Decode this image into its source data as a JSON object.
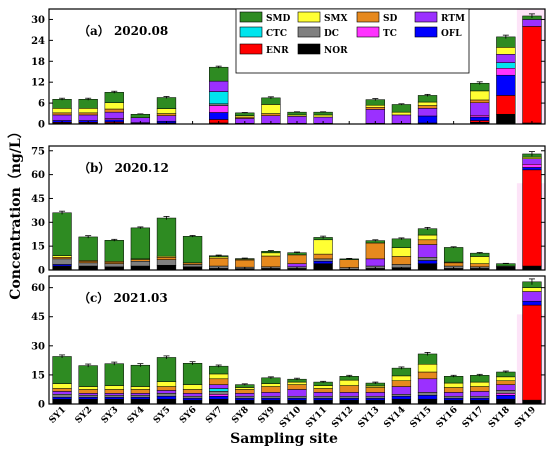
{
  "chart_data": {
    "type": "bar",
    "stacked": true,
    "ylabel": "Concentration（ng/L）",
    "xlabel": "Sampling site",
    "categories": [
      "SY1",
      "SY2",
      "SY3",
      "SY4",
      "SY5",
      "SY6",
      "SY7",
      "SY8",
      "SY9",
      "SY10",
      "SY11",
      "SY12",
      "SY13",
      "SY14",
      "SY15",
      "SY16",
      "SY17",
      "SY18",
      "SY19"
    ],
    "legend": {
      "placement": "top-right of panel (a)",
      "entries": [
        {
          "name": "SMD",
          "color": "#2e8b22"
        },
        {
          "name": "SMX",
          "color": "#ffff33"
        },
        {
          "name": "SD",
          "color": "#e6891e"
        },
        {
          "name": "RTM",
          "color": "#9b30ff"
        },
        {
          "name": "CTC",
          "color": "#00e5ee"
        },
        {
          "name": "DC",
          "color": "#808080"
        },
        {
          "name": "TC",
          "color": "#ff33ff"
        },
        {
          "name": "OFL",
          "color": "#0000ff"
        },
        {
          "name": "ENR",
          "color": "#ff0000"
        },
        {
          "name": "NOR",
          "color": "#000000"
        }
      ]
    },
    "stack_order": [
      "NOR",
      "ENR",
      "OFL",
      "TC",
      "DC",
      "CTC",
      "RTM",
      "SD",
      "SMX",
      "SMD"
    ],
    "panels": [
      {
        "label": "（a）  2020.08",
        "ylim": [
          0,
          33
        ],
        "yticks": [
          0,
          6,
          12,
          18,
          24,
          30
        ],
        "totals": [
          7.1,
          7.1,
          9.1,
          2.8,
          7.6,
          0,
          16.3,
          3.2,
          7.5,
          3.4,
          3.4,
          0,
          7.0,
          5.6,
          8.2,
          0,
          11.7,
          25.0,
          31.0
        ],
        "errors": [
          0.3,
          0.3,
          0.3,
          0.1,
          0.3,
          0,
          0.3,
          0.1,
          0.3,
          0.1,
          0.1,
          0,
          0.3,
          0.2,
          0.3,
          0,
          0.4,
          0.5,
          0.6
        ],
        "stacks": [
          {
            "NOR": 0.3,
            "ENR": 0.2,
            "OFL": 0.5,
            "RTM": 1.6,
            "SD": 0.6,
            "SMX": 1.3,
            "SMD": 2.6
          },
          {
            "NOR": 0.3,
            "ENR": 0.2,
            "OFL": 0.5,
            "RTM": 1.6,
            "SD": 0.6,
            "SMX": 1.3,
            "SMD": 2.6
          },
          {
            "NOR": 0.3,
            "ENR": 0.3,
            "OFL": 0.6,
            "TC": 0.4,
            "RTM": 1.8,
            "SD": 0.9,
            "SMX": 1.8,
            "SMD": 3.0
          },
          {
            "NOR": 0.2,
            "OFL": 0.2,
            "RTM": 1.4,
            "SMD": 1.0
          },
          {
            "NOR": 0.3,
            "OFL": 0.5,
            "RTM": 1.6,
            "SD": 0.6,
            "SMX": 1.4,
            "SMD": 3.2
          },
          {},
          {
            "NOR": 0.3,
            "ENR": 1.0,
            "OFL": 2.0,
            "TC": 2.0,
            "DC": 0.5,
            "CTC": 3.5,
            "RTM": 3.0,
            "SMD": 4.0
          },
          {
            "NOR": 0.2,
            "RTM": 1.4,
            "SD": 0.4,
            "SMX": 0.4,
            "SMD": 0.8
          },
          {
            "NOR": 0.2,
            "RTM": 2.2,
            "SD": 0.6,
            "SMX": 2.6,
            "SMD": 1.9
          },
          {
            "NOR": 0.2,
            "RTM": 2.0,
            "SMX": 0.4,
            "SMD": 0.8
          },
          {
            "NOR": 0.2,
            "RTM": 1.8,
            "SMX": 0.6,
            "SMD": 0.8
          },
          {},
          {
            "NOR": 0.2,
            "RTM": 4.0,
            "SD": 0.6,
            "SMX": 0.6,
            "SMD": 1.6
          },
          {
            "NOR": 0.2,
            "RTM": 2.4,
            "SMX": 0.8,
            "SMD": 2.2
          },
          {
            "NOR": 0.3,
            "OFL": 2.0,
            "RTM": 2.2,
            "SD": 0.8,
            "SMX": 1.0,
            "SMD": 1.9
          },
          {},
          {
            "NOR": 0.5,
            "ENR": 0.5,
            "OFL": 1.0,
            "RTM": 3.6,
            "TC": 0.5,
            "SD": 0.8,
            "SMX": 2.6,
            "SMD": 2.2
          },
          {
            "NOR": 2.8,
            "ENR": 5.4,
            "OFL": 5.8,
            "TC": 2.0,
            "CTC": 1.6,
            "RTM": 2.4,
            "SMX": 2.0,
            "SMD": 3.0
          },
          {
            "NOR": 0.3,
            "ENR": 27.7,
            "RTM": 2.0,
            "SMD": 1.0
          }
        ]
      },
      {
        "label": "（b）  2020.12",
        "ylim": [
          0,
          78
        ],
        "yticks": [
          0,
          15,
          30,
          45,
          60,
          75
        ],
        "totals": [
          36.0,
          20.8,
          18.7,
          26.5,
          32.7,
          21.2,
          9.0,
          7.2,
          11.8,
          10.9,
          20.5,
          7.0,
          18.5,
          19.6,
          26.0,
          14.2,
          10.6,
          4.0,
          73.0
        ],
        "errors": [
          1.0,
          0.8,
          0.6,
          0.6,
          1.0,
          0.5,
          0.4,
          0.3,
          0.4,
          0.4,
          0.8,
          0.3,
          0.5,
          0.6,
          0.8,
          0.4,
          0.4,
          0.2,
          1.5
        ],
        "stacks": [
          {
            "NOR": 2.5,
            "OFL": 1.0,
            "DC": 3.5,
            "SD": 1.0,
            "SMX": 1.0,
            "SMD": 27.0
          },
          {
            "NOR": 2.5,
            "DC": 2.0,
            "SD": 1.0,
            "SMX": 0.5,
            "SMD": 14.8
          },
          {
            "NOR": 2.0,
            "DC": 2.0,
            "SD": 1.0,
            "SMX": 0.5,
            "SMD": 13.2
          },
          {
            "NOR": 2.5,
            "DC": 3.0,
            "SD": 1.0,
            "SMX": 0.5,
            "SMD": 19.5
          },
          {
            "NOR": 3.0,
            "DC": 3.5,
            "SD": 1.5,
            "SMX": 0.7,
            "SMD": 24.0
          },
          {
            "NOR": 2.0,
            "DC": 1.5,
            "SD": 1.0,
            "SMD": 16.7
          },
          {
            "NOR": 1.0,
            "DC": 1.5,
            "SD": 5.0,
            "SMX": 0.8,
            "SMD": 0.7
          },
          {
            "NOR": 0.8,
            "DC": 1.0,
            "SD": 4.5,
            "SMX": 0.5,
            "SMD": 0.4
          },
          {
            "NOR": 1.0,
            "DC": 1.0,
            "SD": 6.8,
            "SMX": 2.0,
            "SMD": 1.0
          },
          {
            "NOR": 1.0,
            "RTM": 2.0,
            "DC": 1.0,
            "SD": 5.5,
            "SMD": 1.4
          },
          {
            "NOR": 4.0,
            "OFL": 1.5,
            "DC": 1.5,
            "SD": 3.0,
            "SMX": 9.0,
            "SMD": 1.5
          },
          {
            "NOR": 0.5,
            "DC": 1.0,
            "SD": 5.0,
            "SMD": 0.5
          },
          {
            "NOR": 1.0,
            "RTM": 4.5,
            "DC": 1.5,
            "SD": 10.0,
            "SMD": 1.5
          },
          {
            "NOR": 1.5,
            "DC": 2.0,
            "SD": 5.0,
            "SMX": 5.5,
            "SMD": 5.6
          },
          {
            "NOR": 4.0,
            "OFL": 2.0,
            "RTM": 8.0,
            "DC": 2.0,
            "SD": 3.0,
            "SMX": 3.0,
            "SMD": 4.0
          },
          {
            "NOR": 1.0,
            "DC": 1.5,
            "SD": 2.0,
            "SMX": 0.5,
            "SMD": 9.2
          },
          {
            "NOR": 1.0,
            "DC": 1.0,
            "SD": 2.0,
            "SMX": 4.5,
            "SMD": 2.1
          },
          {
            "NOR": 2.0,
            "DC": 0.5,
            "SMD": 1.5
          },
          {
            "NOR": 2.5,
            "ENR": 60.5,
            "OFL": 1.5,
            "TC": 2.0,
            "RTM": 3.5,
            "SMX": 1.0,
            "SMD": 2.0
          }
        ]
      },
      {
        "label": "（c）  2021.03",
        "ylim": [
          0,
          66
        ],
        "yticks": [
          0,
          15,
          30,
          45,
          60
        ],
        "totals": [
          24.5,
          19.8,
          20.8,
          20.0,
          24.0,
          21.0,
          19.5,
          10.0,
          13.5,
          12.8,
          11.3,
          14.3,
          10.8,
          18.5,
          25.8,
          14.3,
          14.8,
          16.5,
          63.0
        ],
        "errors": [
          0.8,
          0.8,
          0.8,
          0.8,
          0.8,
          0.8,
          0.6,
          0.4,
          0.5,
          0.5,
          0.4,
          0.5,
          0.5,
          0.6,
          0.8,
          0.5,
          0.5,
          0.5,
          1.5
        ],
        "stacks": [
          {
            "NOR": 2.5,
            "OFL": 1.0,
            "DC": 1.5,
            "RTM": 1.5,
            "SD": 1.5,
            "SMX": 2.5,
            "SMD": 14.0
          },
          {
            "NOR": 2.5,
            "OFL": 1.0,
            "DC": 1.0,
            "RTM": 1.0,
            "SD": 2.0,
            "SMX": 1.5,
            "SMD": 10.8
          },
          {
            "NOR": 2.5,
            "OFL": 1.0,
            "DC": 1.0,
            "RTM": 1.0,
            "SD": 2.0,
            "SMX": 2.0,
            "SMD": 11.3
          },
          {
            "NOR": 2.5,
            "OFL": 1.0,
            "DC": 1.0,
            "RTM": 1.0,
            "SD": 2.0,
            "SMX": 1.5,
            "SMD": 11.0
          },
          {
            "NOR": 2.5,
            "OFL": 1.5,
            "DC": 1.5,
            "RTM": 1.5,
            "SD": 2.0,
            "SMX": 2.5,
            "SMD": 12.5
          },
          {
            "NOR": 2.0,
            "OFL": 1.0,
            "DC": 1.0,
            "RTM": 1.5,
            "SD": 2.0,
            "SMX": 2.5,
            "SMD": 11.0
          },
          {
            "NOR": 2.5,
            "OFL": 1.5,
            "TC": 1.0,
            "DC": 1.5,
            "CTC": 1.5,
            "RTM": 2.0,
            "SD": 3.0,
            "SMX": 2.5,
            "SMD": 4.0
          },
          {
            "NOR": 2.0,
            "OFL": 1.0,
            "DC": 1.0,
            "RTM": 1.5,
            "SD": 2.0,
            "SMX": 1.0,
            "SMD": 1.5
          },
          {
            "NOR": 2.0,
            "OFL": 1.0,
            "DC": 1.0,
            "RTM": 2.0,
            "SD": 3.0,
            "SMX": 1.5,
            "SMD": 3.0
          },
          {
            "NOR": 2.0,
            "OFL": 1.0,
            "DC": 1.0,
            "RTM": 3.5,
            "SD": 2.5,
            "SMX": 1.3,
            "SMD": 1.5
          },
          {
            "NOR": 2.0,
            "OFL": 1.0,
            "DC": 1.0,
            "RTM": 2.0,
            "SD": 2.0,
            "SMX": 1.5,
            "SMD": 1.8
          },
          {
            "NOR": 2.0,
            "OFL": 1.0,
            "DC": 1.0,
            "RTM": 2.0,
            "SD": 3.5,
            "SMX": 2.8,
            "SMD": 2.0
          },
          {
            "NOR": 2.0,
            "OFL": 1.0,
            "DC": 1.0,
            "RTM": 2.0,
            "SD": 2.5,
            "SMX": 0.8,
            "SMD": 1.5
          },
          {
            "NOR": 2.5,
            "OFL": 1.5,
            "DC": 1.0,
            "RTM": 4.0,
            "SD": 3.0,
            "SMX": 2.5,
            "SMD": 4.0
          },
          {
            "NOR": 2.5,
            "OFL": 2.0,
            "DC": 1.5,
            "RTM": 7.0,
            "SD": 3.5,
            "SMX": 4.0,
            "SMD": 5.3
          },
          {
            "NOR": 2.0,
            "OFL": 1.0,
            "DC": 1.0,
            "RTM": 2.0,
            "SD": 2.5,
            "SMX": 2.3,
            "SMD": 3.5
          },
          {
            "NOR": 2.0,
            "OFL": 1.0,
            "DC": 1.0,
            "RTM": 2.5,
            "SD": 2.5,
            "SMX": 2.3,
            "SMD": 3.5
          },
          {
            "NOR": 2.5,
            "OFL": 2.0,
            "TC": 1.0,
            "DC": 1.5,
            "RTM": 3.0,
            "SD": 2.0,
            "SMX": 2.0,
            "SMD": 2.5
          },
          {
            "NOR": 2.0,
            "ENR": 49.0,
            "OFL": 2.0,
            "RTM": 5.0,
            "SMX": 2.0,
            "SMD": 3.0
          }
        ]
      }
    ]
  }
}
